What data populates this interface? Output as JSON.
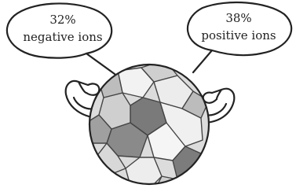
{
  "bubbles": [
    {
      "percent": "32%",
      "label": "negative ions"
    },
    {
      "percent": "38%",
      "label": "positive ions"
    }
  ]
}
